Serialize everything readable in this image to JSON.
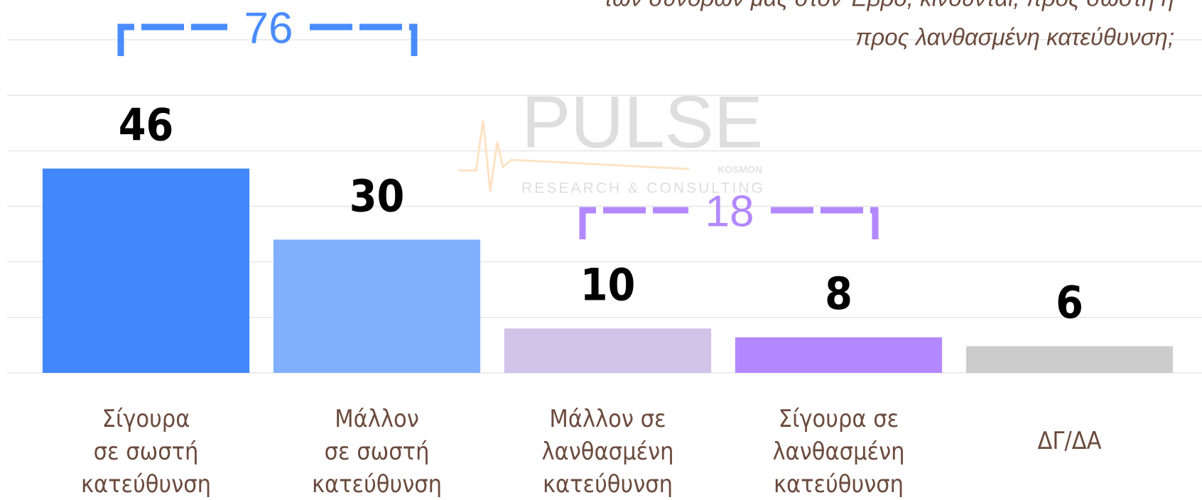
{
  "chart_data": {
    "type": "bar",
    "title_lines": [
      "των συνόρων μας στον Έβρο, κινούνται, προς σωστή ή",
      "προς λανθασμένη κατεύθυνση;"
    ],
    "categories": [
      "Σίγουρα\nσε σωστή\nκατεύθυνση",
      "Μάλλον\nσε σωστή\nκατεύθυνση",
      "Μάλλον σε\nλανθασμένη\nκατεύθυνση",
      "Σίγουρα σε\nλανθασμένη\nκατεύθυνση",
      "ΔΓ/ΔΑ"
    ],
    "values": [
      46,
      30,
      10,
      8,
      6
    ],
    "colors": [
      "#4287fb",
      "#80b0fc",
      "#d1c4e8",
      "#b388ff",
      "#cccccc"
    ],
    "ylim": [
      0,
      75
    ],
    "yticks": [
      0,
      12.5,
      25,
      37.5,
      50,
      62.5,
      75
    ],
    "grid": true,
    "annotations": [
      {
        "text": "76",
        "color": "#4a8cff"
      },
      {
        "text": "18",
        "color": "#b388ff"
      }
    ],
    "watermark": {
      "brand": "PULSE",
      "sub": "RESEARCH & CONSULTING",
      "tag": "KOSMON"
    }
  }
}
